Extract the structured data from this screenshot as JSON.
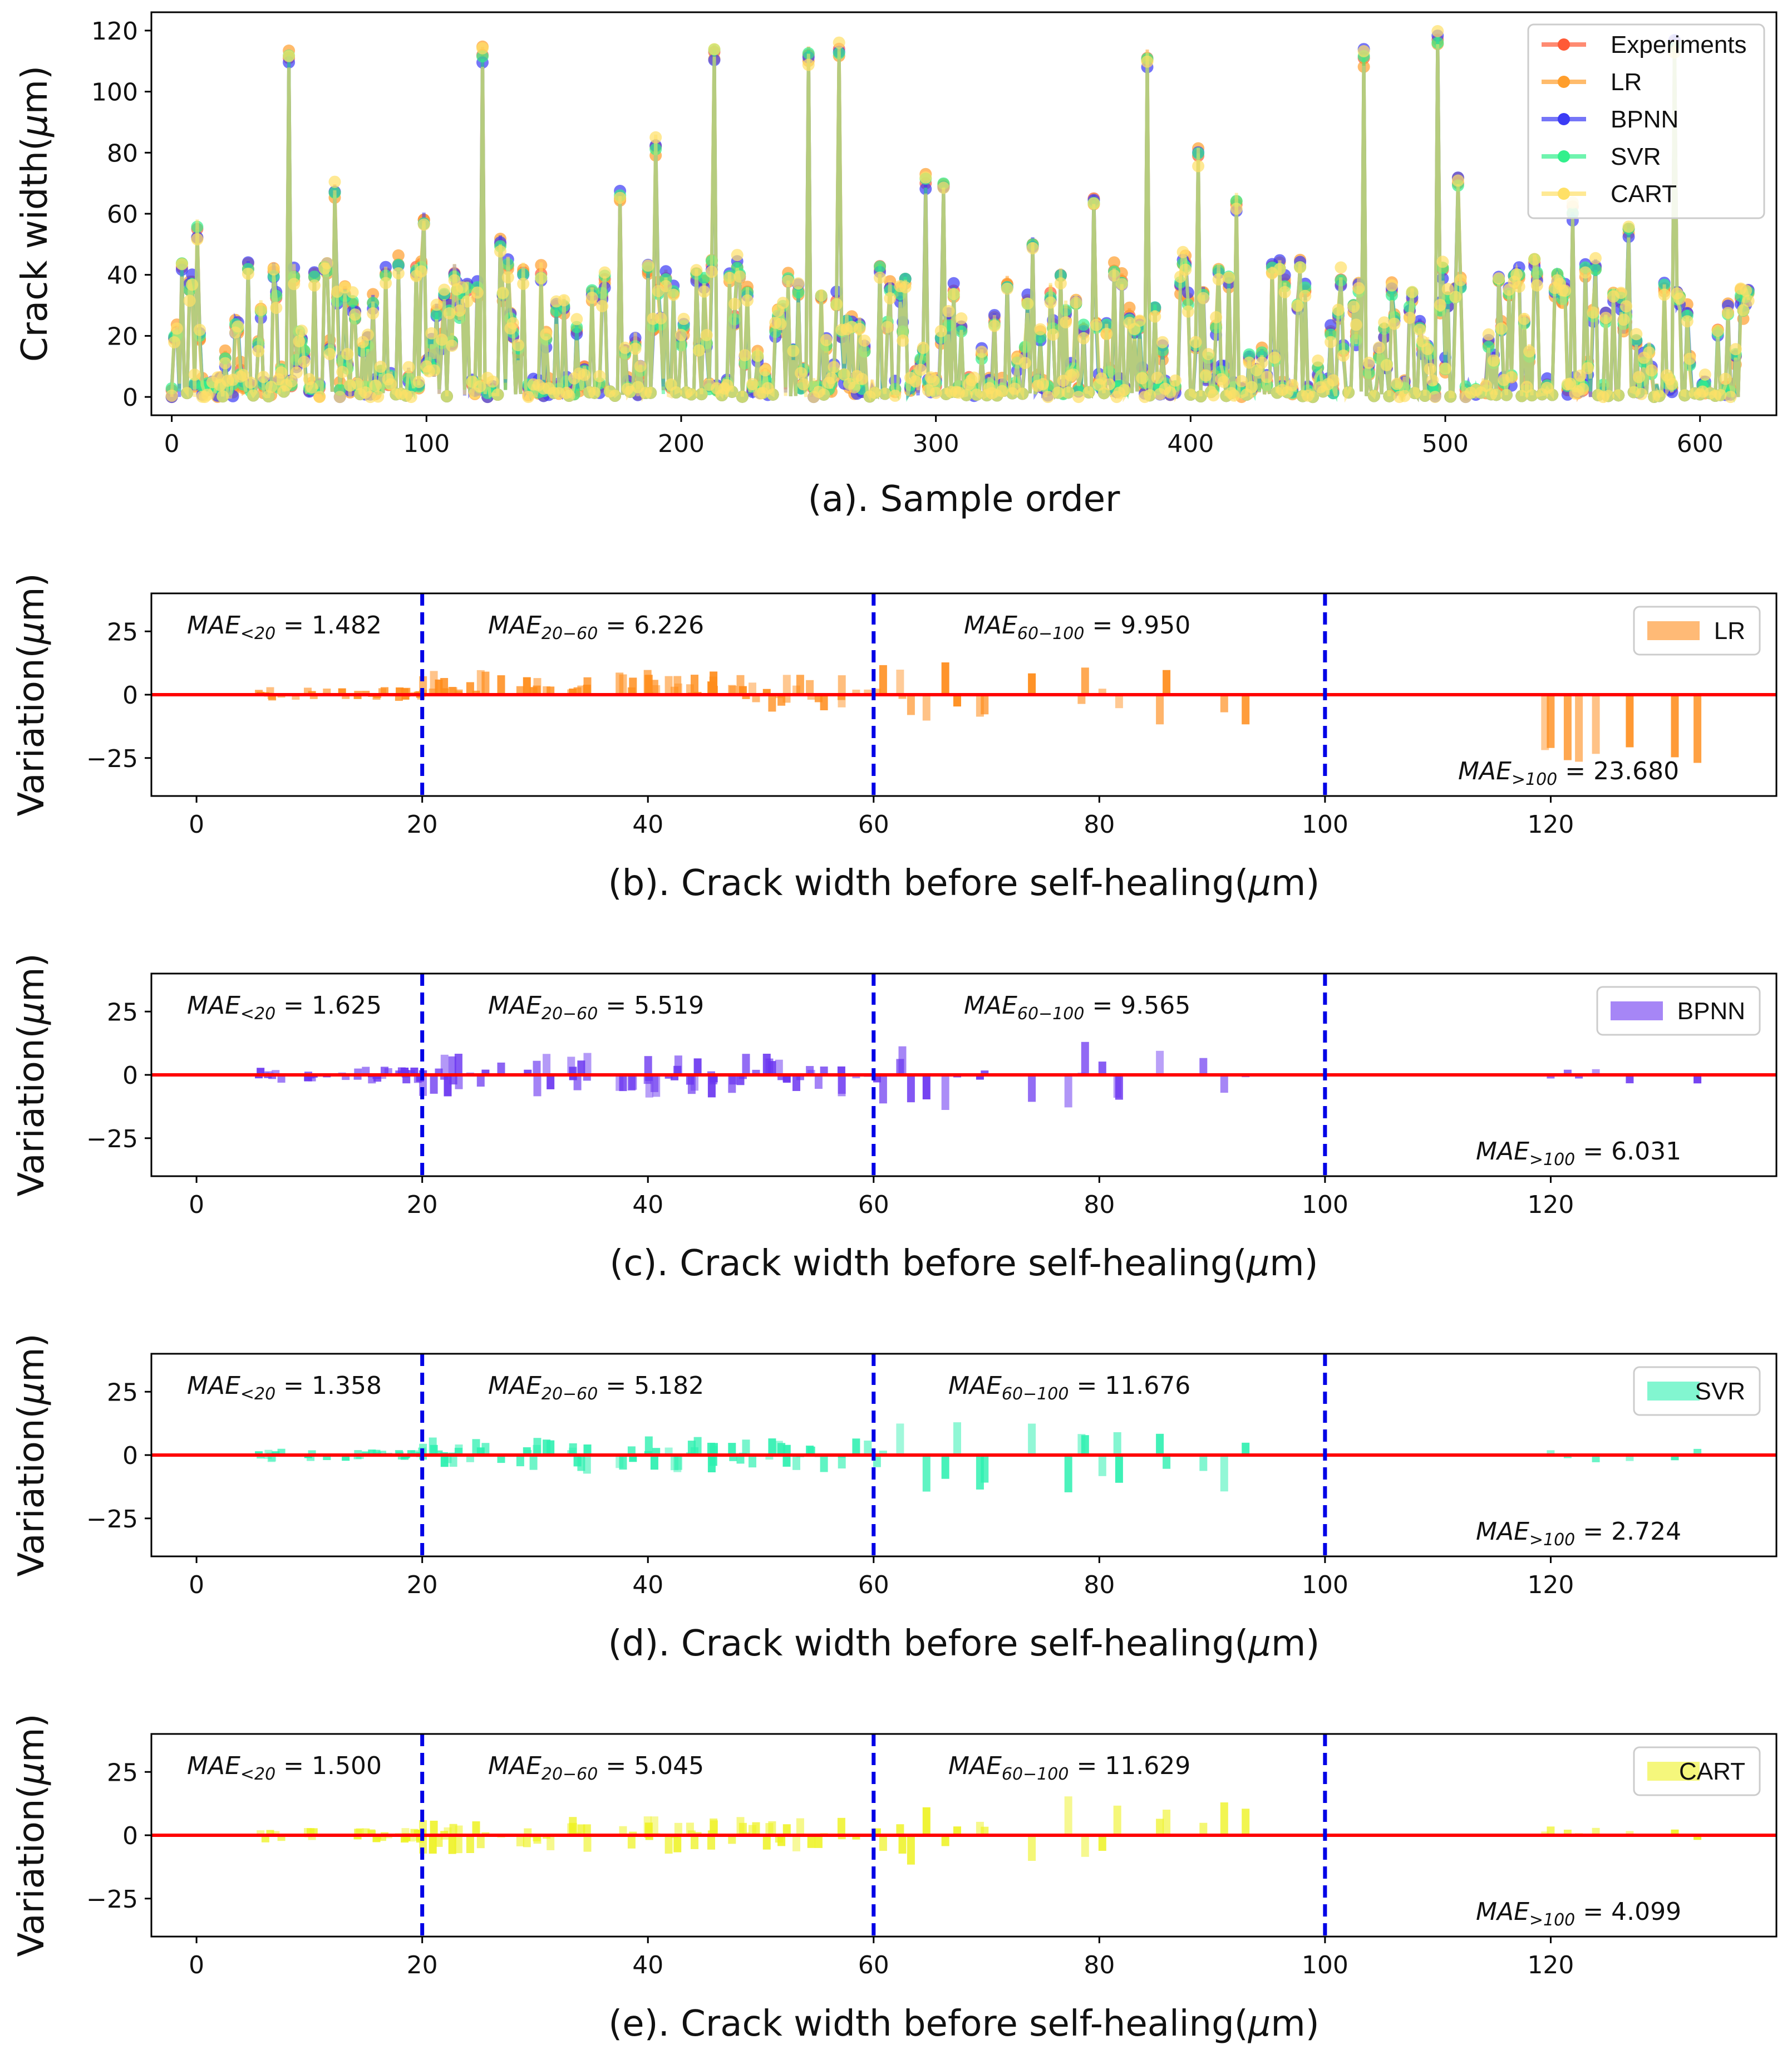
{
  "chart_data": [
    {
      "id": "a",
      "type": "line",
      "xlabel": "(a). Sample order",
      "ylabel_main": "Crack width(",
      "ylabel_mu": "μ",
      "ylabel_tail": "m)",
      "xlim": [
        -8,
        630
      ],
      "ylim": [
        -6,
        126
      ],
      "xticks": [
        0,
        100,
        200,
        300,
        400,
        500,
        600
      ],
      "yticks": [
        0,
        20,
        40,
        60,
        80,
        100,
        120
      ],
      "legend": {
        "position": "top-right",
        "entries": [
          {
            "label": "Experiments",
            "color": "#ff5a36"
          },
          {
            "label": "LR",
            "color": "#ff9e2c"
          },
          {
            "label": "BPNN",
            "color": "#3b3bf5"
          },
          {
            "label": "SVR",
            "color": "#32f08c"
          },
          {
            "label": "CART",
            "color": "#ffe066"
          }
        ]
      },
      "peaks": [
        {
          "x": 46,
          "y": 111
        },
        {
          "x": 122,
          "y": 112
        },
        {
          "x": 213,
          "y": 113
        },
        {
          "x": 250,
          "y": 112
        },
        {
          "x": 262,
          "y": 114
        },
        {
          "x": 383,
          "y": 111
        },
        {
          "x": 468,
          "y": 111
        },
        {
          "x": 497,
          "y": 117
        },
        {
          "x": 590,
          "y": 116
        },
        {
          "x": 10,
          "y": 55
        },
        {
          "x": 64,
          "y": 67
        },
        {
          "x": 99,
          "y": 58
        },
        {
          "x": 129,
          "y": 50
        },
        {
          "x": 176,
          "y": 65
        },
        {
          "x": 190,
          "y": 82
        },
        {
          "x": 296,
          "y": 70
        },
        {
          "x": 303,
          "y": 69
        },
        {
          "x": 338,
          "y": 50
        },
        {
          "x": 362,
          "y": 65
        },
        {
          "x": 403,
          "y": 79
        },
        {
          "x": 418,
          "y": 63
        },
        {
          "x": 505,
          "y": 70
        },
        {
          "x": 550,
          "y": 60
        },
        {
          "x": 572,
          "y": 55
        }
      ]
    },
    {
      "id": "b",
      "type": "bar",
      "model": "LR",
      "color": "#ff8c1a",
      "xlabel_pre": "(b). Crack width before self-healing(",
      "xlabel_mu": "μ",
      "xlabel_post": "m)",
      "ylabel_main": "Variation(",
      "ylabel_mu": "μ",
      "ylabel_tail": "m)",
      "xlim": [
        -4,
        140
      ],
      "ylim": [
        -40,
        40
      ],
      "xticks": [
        0,
        20,
        40,
        60,
        80,
        100,
        120
      ],
      "yticks": [
        -25,
        0,
        25
      ],
      "vlines": [
        20,
        60,
        100
      ],
      "mae": [
        {
          "sub": "<20",
          "value": "1.482"
        },
        {
          "sub": "20−60",
          "value": "6.226"
        },
        {
          "sub": "60−100",
          "value": "9.950"
        },
        {
          "sub": ">100",
          "value": "23.680"
        }
      ]
    },
    {
      "id": "c",
      "type": "bar",
      "model": "BPNN",
      "color": "#6a35f0",
      "xlabel_pre": "(c). Crack width before self-healing(",
      "xlabel_mu": "μ",
      "xlabel_post": "m)",
      "ylabel_main": "Variation(",
      "ylabel_mu": "μ",
      "ylabel_tail": "m)",
      "xlim": [
        -4,
        140
      ],
      "ylim": [
        -40,
        40
      ],
      "xticks": [
        0,
        20,
        40,
        60,
        80,
        100,
        120
      ],
      "yticks": [
        -25,
        0,
        25
      ],
      "vlines": [
        20,
        60,
        100
      ],
      "mae": [
        {
          "sub": "<20",
          "value": "1.625"
        },
        {
          "sub": "20−60",
          "value": "5.519"
        },
        {
          "sub": "60−100",
          "value": "9.565"
        },
        {
          "sub": ">100",
          "value": "6.031"
        }
      ]
    },
    {
      "id": "d",
      "type": "bar",
      "model": "SVR",
      "color": "#2ef0b0",
      "xlabel_pre": "(d). Crack width before self-healing(",
      "xlabel_mu": "μ",
      "xlabel_post": "m)",
      "ylabel_main": "Variation(",
      "ylabel_mu": "μ",
      "ylabel_tail": "m)",
      "xlim": [
        -4,
        140
      ],
      "ylim": [
        -40,
        40
      ],
      "xticks": [
        0,
        20,
        40,
        60,
        80,
        100,
        120
      ],
      "yticks": [
        -25,
        0,
        25
      ],
      "vlines": [
        20,
        60,
        100
      ],
      "mae": [
        {
          "sub": "<20",
          "value": "1.358"
        },
        {
          "sub": "20−60",
          "value": "5.182"
        },
        {
          "sub": "60−100",
          "value": "11.676"
        },
        {
          "sub": ">100",
          "value": "2.724"
        }
      ]
    },
    {
      "id": "e",
      "type": "bar",
      "model": "CART",
      "color": "#eef224",
      "xlabel_pre": "(e). Crack width before self-healing(",
      "xlabel_mu": "μ",
      "xlabel_post": "m)",
      "ylabel_main": "Variation(",
      "ylabel_mu": "μ",
      "ylabel_tail": "m)",
      "xlim": [
        -4,
        140
      ],
      "ylim": [
        -40,
        40
      ],
      "xticks": [
        0,
        20,
        40,
        60,
        80,
        100,
        120
      ],
      "yticks": [
        -25,
        0,
        25
      ],
      "vlines": [
        20,
        60,
        100
      ],
      "mae": [
        {
          "sub": "<20",
          "value": "1.500"
        },
        {
          "sub": "20−60",
          "value": "5.045"
        },
        {
          "sub": "60−100",
          "value": "11.629"
        },
        {
          "sub": ">100",
          "value": "4.099"
        }
      ]
    }
  ]
}
